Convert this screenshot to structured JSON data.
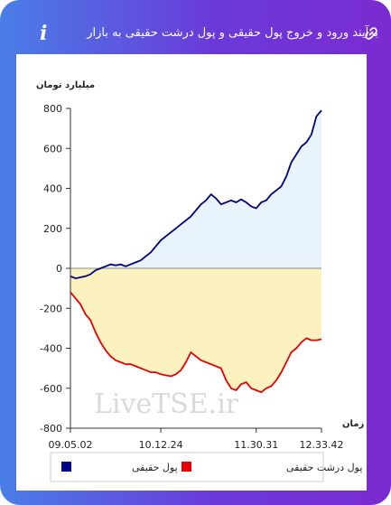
{
  "header": {
    "title": "برآیند ورود و خروج پول حقیقی و پول درشت حقیقی به بازار",
    "info_icon": "i",
    "link_icon": "link-icon"
  },
  "watermark": "LiveTSE.ir",
  "colors": {
    "money_line": "#00007a",
    "money_fill": "#e8f3fb",
    "big_line": "#e60000",
    "big_fill": "#fbf2c0",
    "legend_navy": "#00008b",
    "legend_red": "#e60000"
  },
  "chart_data": {
    "type": "area",
    "ylabel": "میلیارد تومان",
    "xlabel": "زمان",
    "ylim": [
      -800,
      800
    ],
    "yticks": [
      800,
      600,
      400,
      200,
      0,
      -200,
      -400,
      -600,
      -800
    ],
    "xlim": [
      0,
      100
    ],
    "xticks": [
      {
        "x": 0,
        "label": "09.05.02"
      },
      {
        "x": 36,
        "label": "10.12.24"
      },
      {
        "x": 74,
        "label": "11.30.31"
      },
      {
        "x": 100,
        "label": "12.33.42"
      }
    ],
    "legend": {
      "position": "bottom"
    },
    "series": [
      {
        "name": "پول حقیقی",
        "color": "#00007a",
        "x": [
          0,
          2,
          4,
          6,
          8,
          10,
          12,
          14,
          16,
          18,
          20,
          22,
          24,
          26,
          28,
          30,
          32,
          34,
          36,
          38,
          40,
          42,
          44,
          46,
          48,
          50,
          52,
          54,
          56,
          58,
          60,
          62,
          64,
          66,
          68,
          70,
          72,
          74,
          76,
          78,
          80,
          82,
          84,
          86,
          88,
          90,
          92,
          94,
          96,
          98,
          100
        ],
        "y": [
          -40,
          -50,
          -45,
          -40,
          -30,
          -10,
          0,
          10,
          20,
          15,
          20,
          10,
          20,
          30,
          40,
          60,
          80,
          110,
          140,
          160,
          180,
          200,
          220,
          240,
          260,
          290,
          320,
          340,
          370,
          350,
          320,
          330,
          340,
          330,
          345,
          330,
          310,
          300,
          330,
          340,
          370,
          390,
          410,
          460,
          530,
          570,
          610,
          630,
          670,
          760,
          790
        ]
      },
      {
        "name": "پول درشت حقیقی",
        "color": "#e60000",
        "x": [
          0,
          2,
          4,
          6,
          8,
          10,
          12,
          14,
          16,
          18,
          20,
          22,
          24,
          26,
          28,
          30,
          32,
          34,
          36,
          38,
          40,
          42,
          44,
          46,
          48,
          50,
          52,
          54,
          56,
          58,
          60,
          62,
          64,
          66,
          68,
          70,
          72,
          74,
          76,
          78,
          80,
          82,
          84,
          86,
          88,
          90,
          92,
          94,
          96,
          98,
          100
        ],
        "y": [
          -120,
          -150,
          -180,
          -230,
          -260,
          -320,
          -370,
          -410,
          -440,
          -460,
          -470,
          -480,
          -480,
          -490,
          -500,
          -510,
          -520,
          -520,
          -530,
          -535,
          -540,
          -530,
          -510,
          -470,
          -420,
          -440,
          -460,
          -470,
          -480,
          -490,
          -500,
          -560,
          -600,
          -610,
          -580,
          -570,
          -600,
          -610,
          -620,
          -600,
          -590,
          -560,
          -520,
          -470,
          -420,
          -400,
          -370,
          -350,
          -360,
          -360,
          -355
        ]
      }
    ]
  }
}
